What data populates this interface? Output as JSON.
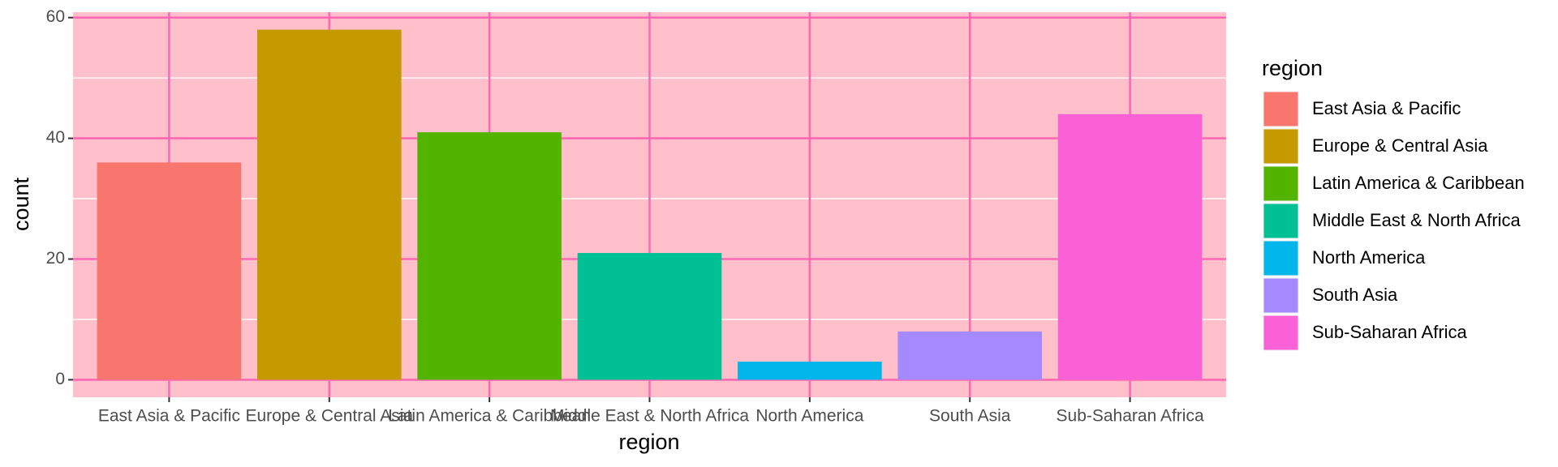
{
  "chart_data": {
    "type": "bar",
    "categories": [
      "East Asia & Pacific",
      "Europe & Central Asia",
      "Latin America & Caribbean",
      "Middle East & North Africa",
      "North America",
      "South Asia",
      "Sub-Saharan Africa"
    ],
    "series": [
      {
        "name": "count",
        "values": [
          36,
          58,
          41,
          21,
          3,
          8,
          44
        ],
        "colors": [
          "#f8766d",
          "#c49a00",
          "#53b400",
          "#00c094",
          "#00b6eb",
          "#a58aff",
          "#fb61d7"
        ]
      }
    ],
    "x_label": "region",
    "y_label": "count",
    "legend_title": "region",
    "ylim": [
      -2.9,
      60.9
    ],
    "yticks": [
      0,
      20,
      40,
      60
    ],
    "y_minor_ticks": [
      10,
      30,
      50
    ],
    "grid": true,
    "panel_color": "#ffc0cb",
    "grid_color": "#ff69b4",
    "minor_grid_color": "#ffffff",
    "legend": "right"
  }
}
